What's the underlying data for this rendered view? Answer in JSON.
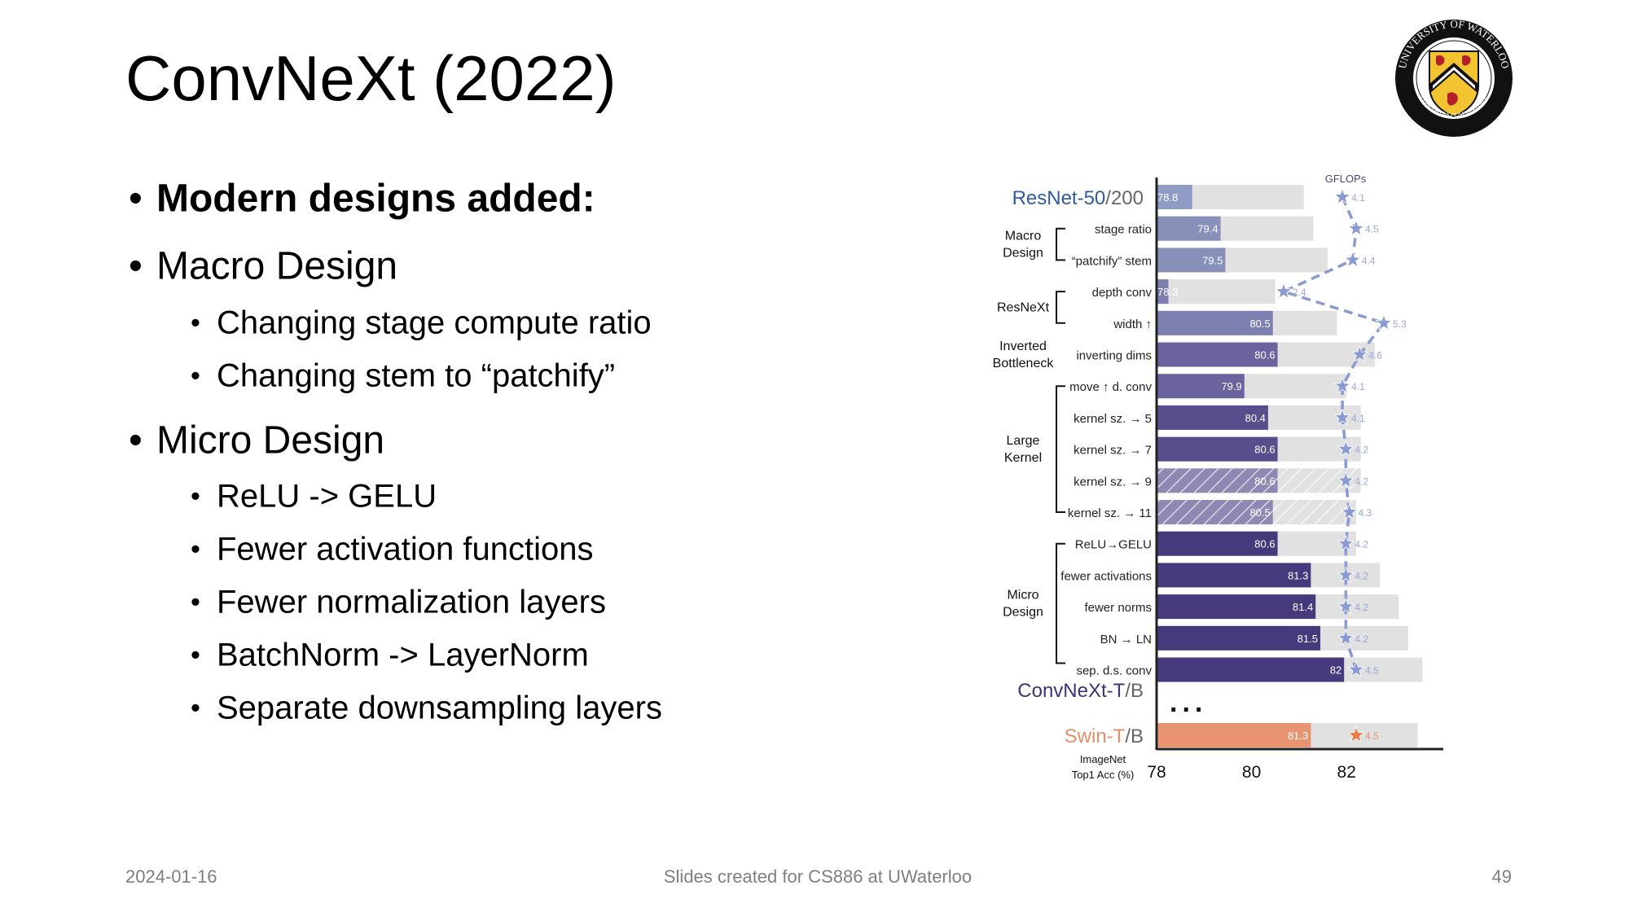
{
  "slide": {
    "title": "ConvNeXt (2022)",
    "bullets": [
      {
        "level": 1,
        "text": "Modern designs added:",
        "bold": true
      },
      {
        "level": 1,
        "text": "Macro Design"
      },
      {
        "level": 2,
        "text": "Changing stage compute ratio"
      },
      {
        "level": 2,
        "text": "Changing stem to “patchify”"
      },
      {
        "level": 1,
        "text": "Micro Design"
      },
      {
        "level": 2,
        "text": "ReLU -> GELU"
      },
      {
        "level": 2,
        "text": "Fewer activation functions"
      },
      {
        "level": 2,
        "text": "Fewer normalization layers"
      },
      {
        "level": 2,
        "text": "BatchNorm -> LayerNorm"
      },
      {
        "level": 2,
        "text": "Separate downsampling layers"
      }
    ],
    "bullet_glyph": "•"
  },
  "logo": {
    "name": "university-of-waterloo-seal",
    "text_top": "UNIVERSITY OF WATERLOO",
    "text_bottom": "CONCORDIA CUM VERITATE"
  },
  "footer": {
    "date": "2024-01-16",
    "center": "Slides created for CS886 at UWaterloo",
    "page": "49"
  },
  "chart_data": {
    "type": "bar",
    "orientation": "horizontal",
    "xlabel": [
      "ImageNet",
      "Top1 Acc (%)"
    ],
    "xticks": [
      "78",
      "80",
      "82"
    ],
    "xlim": [
      78,
      84
    ],
    "secondary_label": "GFLOPs",
    "ellipsis": "...",
    "models": [
      {
        "row": 0,
        "main": "ResNet-50",
        "suffix": "/200",
        "color": "#2f5b9e"
      },
      {
        "row": 15,
        "main": "ConvNeXt-T",
        "suffix": "/B",
        "color": "#3d3376",
        "below": true
      },
      {
        "row": 16,
        "main": "Swin-T",
        "suffix": "/B",
        "color": "#e58f6a"
      }
    ],
    "groups": [
      {
        "lines": [
          "Macro",
          "Design"
        ],
        "rows": [
          1,
          2
        ],
        "bracket": true
      },
      {
        "lines": [
          "ResNeXt"
        ],
        "rows": [
          3,
          4
        ],
        "bracket": true
      },
      {
        "lines": [
          "Inverted",
          "Bottleneck"
        ],
        "rows": [
          5,
          5
        ],
        "bracket": false
      },
      {
        "lines": [
          "Large",
          "Kernel"
        ],
        "rows": [
          6,
          10
        ],
        "bracket": true
      },
      {
        "lines": [
          "Micro",
          "Design"
        ],
        "rows": [
          11,
          15
        ],
        "bracket": true
      }
    ],
    "rows": [
      {
        "label": "",
        "value": 78.8,
        "value_large": 81.1,
        "gflops": 4.1,
        "color": "#8f9cc6",
        "hatched": false
      },
      {
        "label": "stage ratio",
        "value": 79.4,
        "value_large": 81.3,
        "gflops": 4.5,
        "color": "#8890ba",
        "hatched": false
      },
      {
        "label": "“patchify” stem",
        "value": 79.5,
        "value_large": 81.6,
        "gflops": 4.4,
        "color": "#8890ba",
        "hatched": false
      },
      {
        "label": "depth conv",
        "value": 78.3,
        "value_large": 80.5,
        "gflops": 2.4,
        "color": "#7c7fb0",
        "hatched": false
      },
      {
        "label": "width ↑",
        "value": 80.5,
        "value_large": 81.8,
        "gflops": 5.3,
        "color": "#7c7fb0",
        "hatched": false
      },
      {
        "label": "inverting dims",
        "value": 80.6,
        "value_large": 82.6,
        "gflops": 4.6,
        "color": "#6a639e",
        "hatched": false
      },
      {
        "label": "move ↑ d. conv",
        "value": 79.9,
        "value_large": 82.0,
        "gflops": 4.1,
        "color": "#6a639e",
        "hatched": false
      },
      {
        "label": "kernel sz. → 5",
        "value": 80.4,
        "value_large": 82.3,
        "gflops": 4.1,
        "color": "#584e8c",
        "hatched": false
      },
      {
        "label": "kernel sz. → 7",
        "value": 80.6,
        "value_large": 82.3,
        "gflops": 4.2,
        "color": "#584e8c",
        "hatched": false
      },
      {
        "label": "kernel sz. → 9",
        "value": 80.6,
        "value_large": 82.3,
        "gflops": 4.2,
        "color": "#8e88b2",
        "hatched": true
      },
      {
        "label": "kernel sz. → 11",
        "value": 80.5,
        "value_large": 82.2,
        "gflops": 4.3,
        "color": "#8e88b2",
        "hatched": true
      },
      {
        "label": "ReLU→GELU",
        "value": 80.6,
        "value_large": 82.2,
        "gflops": 4.2,
        "color": "#463a7c",
        "hatched": false
      },
      {
        "label": "fewer activations",
        "value": 81.3,
        "value_large": 82.7,
        "gflops": 4.2,
        "color": "#463a7c",
        "hatched": false
      },
      {
        "label": "fewer norms",
        "value": 81.4,
        "value_large": 83.1,
        "gflops": 4.2,
        "color": "#463a7c",
        "hatched": false
      },
      {
        "label": "BN → LN",
        "value": 81.5,
        "value_large": 83.3,
        "gflops": 4.2,
        "color": "#463a7c",
        "hatched": false
      },
      {
        "label": "sep. d.s. conv",
        "value": 82.0,
        "value_large": 83.6,
        "gflops": 4.5,
        "color": "#463a7c",
        "hatched": false
      },
      {
        "label": "",
        "value": 81.3,
        "value_large": 83.5,
        "gflops": 4.5,
        "color": "#e89372",
        "hatched": false,
        "star_color": "#f07a45",
        "label_color": "#e8926f"
      }
    ],
    "colors": {
      "large_bar": "#e1e1e1",
      "star": "#8a9bd2",
      "star_label": "#9aa8d8",
      "axis": "#222222"
    }
  }
}
